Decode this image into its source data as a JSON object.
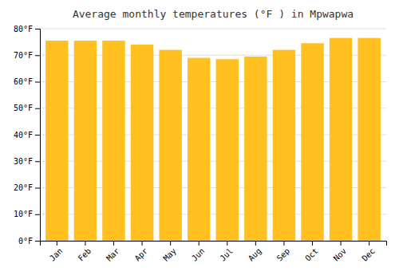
{
  "chart_data": {
    "type": "bar",
    "title": "Average monthly temperatures (°F ) in Mpwapwa",
    "categories": [
      "Jan",
      "Feb",
      "Mar",
      "Apr",
      "May",
      "Jun",
      "Jul",
      "Aug",
      "Sep",
      "Oct",
      "Nov",
      "Dec"
    ],
    "values": [
      75.5,
      75.5,
      75.5,
      74,
      72,
      69,
      68.5,
      69.5,
      72,
      74.5,
      76.5,
      76.5
    ],
    "color": "#FFC020",
    "ylim": [
      0,
      80
    ],
    "yticks": [
      {
        "value": 0,
        "label": "0°F"
      },
      {
        "value": 10,
        "label": "10°F"
      },
      {
        "value": 20,
        "label": "20°F"
      },
      {
        "value": 30,
        "label": "30°F"
      },
      {
        "value": 40,
        "label": "40°F"
      },
      {
        "value": 50,
        "label": "50°F"
      },
      {
        "value": 60,
        "label": "60°F"
      },
      {
        "value": 70,
        "label": "70°F"
      },
      {
        "value": 80,
        "label": "80°F"
      }
    ],
    "grid": true
  }
}
